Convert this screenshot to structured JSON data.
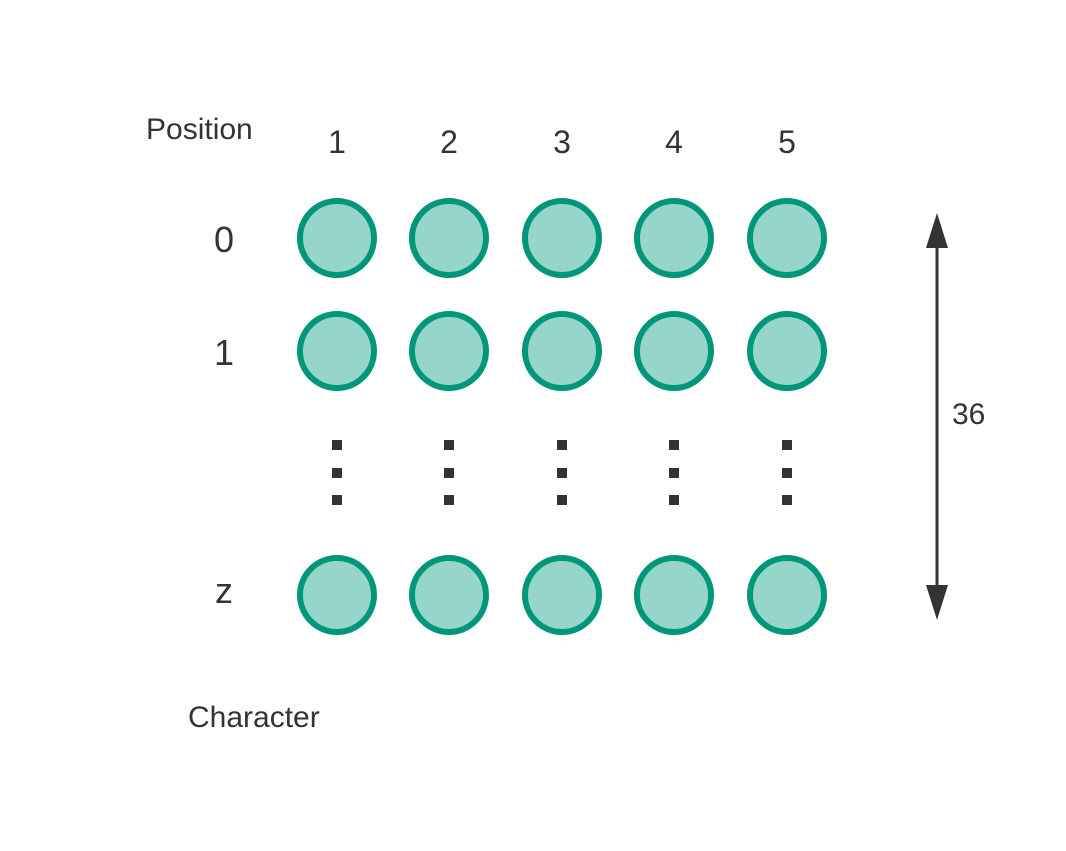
{
  "labels": {
    "position": "Position",
    "character": "Character",
    "dimension": "36"
  },
  "columns": [
    "1",
    "2",
    "3",
    "4",
    "5"
  ],
  "rows": [
    "0",
    "1",
    "z"
  ],
  "colors": {
    "node_fill": "#96d6ca",
    "node_stroke": "#00967a",
    "text": "#333333",
    "arrow": "#333333",
    "dots": "#333333"
  }
}
